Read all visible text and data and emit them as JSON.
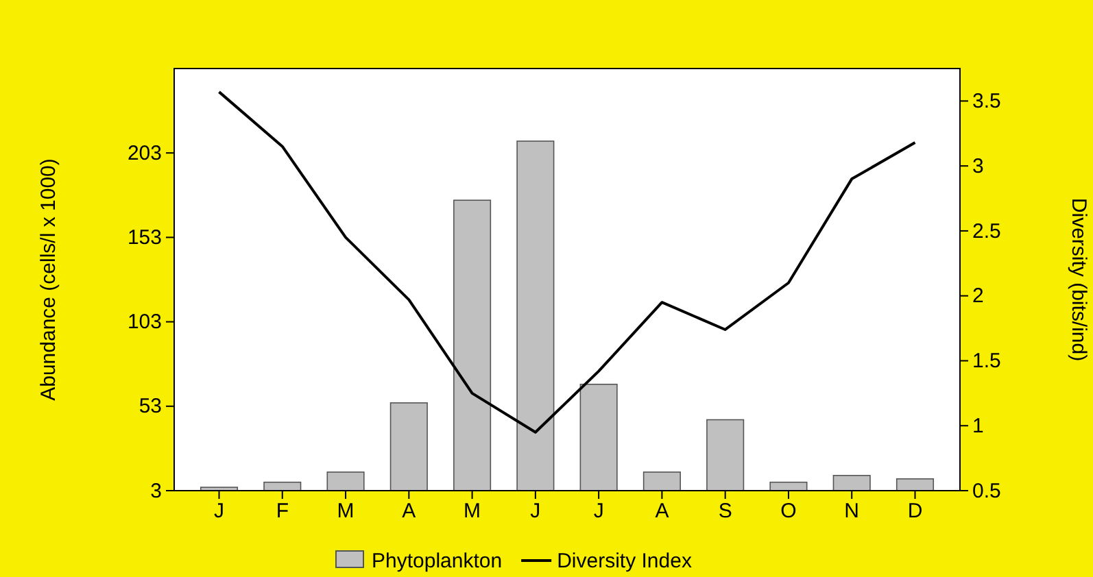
{
  "chart_data": {
    "type": "bar",
    "categories": [
      "J",
      "F",
      "M",
      "A",
      "M",
      "J",
      "J",
      "A",
      "S",
      "O",
      "N",
      "D"
    ],
    "series": [
      {
        "name": "Phytoplankton",
        "color": "#c0c0c0",
        "values": [
          5,
          8,
          14,
          55,
          175,
          210,
          66,
          14,
          45,
          8,
          12,
          10
        ]
      },
      {
        "name": "Diversity Index",
        "type": "line",
        "axis": "y2",
        "color": "#000000",
        "values": [
          3.57,
          3.15,
          2.45,
          1.97,
          1.25,
          0.95,
          1.42,
          1.95,
          1.74,
          2.1,
          2.9,
          3.18
        ]
      }
    ],
    "ylabel": "Abundance (cells/l x 1000)",
    "y2label": "Diversity (bits/ind)",
    "ylim": [
      3,
      253
    ],
    "yticks": [
      3,
      53,
      103,
      153,
      203
    ],
    "y2lim": [
      0.5,
      3.75
    ],
    "y2ticks": [
      0.5,
      1,
      1.5,
      2,
      2.5,
      3,
      3.5
    ],
    "legend": "bottom",
    "grid": false
  }
}
